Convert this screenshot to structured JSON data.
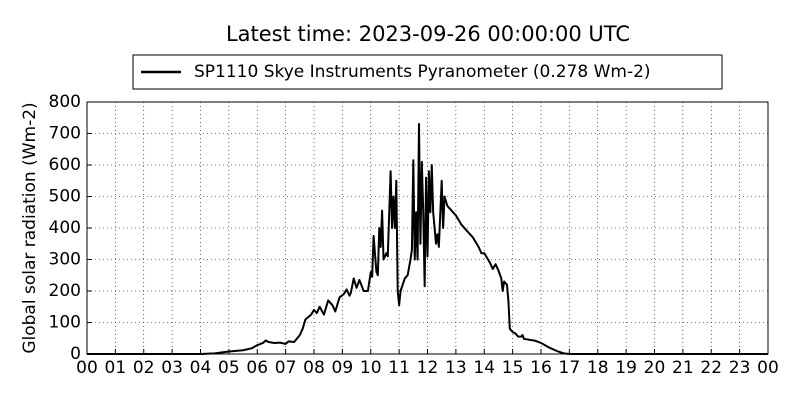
{
  "chart_data": {
    "type": "line",
    "title": "Latest time: 2023-09-26 00:00:00 UTC",
    "y_label": "Global solar radiation (Wm-2)",
    "x": [
      0,
      4.0,
      4.5,
      5.0,
      5.5,
      5.8,
      6.0,
      6.2,
      6.3,
      6.4,
      6.6,
      6.8,
      7.0,
      7.1,
      7.3,
      7.5,
      7.6,
      7.7,
      7.9,
      8.0,
      8.1,
      8.2,
      8.35,
      8.5,
      8.65,
      8.75,
      8.9,
      9.05,
      9.15,
      9.25,
      9.3,
      9.4,
      9.5,
      9.6,
      9.75,
      9.9,
      10.0,
      10.05,
      10.1,
      10.2,
      10.25,
      10.3,
      10.35,
      10.4,
      10.45,
      10.55,
      10.6,
      10.7,
      10.75,
      10.8,
      10.85,
      10.9,
      10.95,
      11.0,
      11.05,
      11.2,
      11.3,
      11.4,
      11.45,
      11.5,
      11.55,
      11.6,
      11.65,
      11.7,
      11.75,
      11.8,
      11.85,
      11.9,
      11.95,
      12.0,
      12.05,
      12.1,
      12.15,
      12.2,
      12.3,
      12.35,
      12.4,
      12.5,
      12.55,
      12.6,
      12.7,
      12.8,
      13.0,
      13.2,
      13.4,
      13.6,
      13.8,
      13.9,
      14.0,
      14.1,
      14.2,
      14.3,
      14.4,
      14.5,
      14.6,
      14.65,
      14.7,
      14.8,
      14.85,
      14.9,
      15.0,
      15.1,
      15.2,
      15.3,
      15.35,
      15.4,
      15.6,
      15.8,
      16.0,
      16.3,
      16.6,
      16.8,
      17.0,
      24
    ],
    "series": [
      {
        "name": "SP1110 Skye Instruments Pyranometer (0.278 Wm-2)",
        "color": "#000000",
        "values": [
          0,
          0,
          2,
          8,
          12,
          18,
          28,
          35,
          43,
          38,
          35,
          36,
          32,
          40,
          38,
          60,
          80,
          110,
          125,
          140,
          130,
          150,
          125,
          170,
          155,
          135,
          180,
          190,
          205,
          185,
          195,
          240,
          210,
          235,
          200,
          200,
          260,
          245,
          375,
          260,
          250,
          400,
          340,
          455,
          300,
          320,
          310,
          580,
          400,
          500,
          400,
          550,
          200,
          155,
          200,
          240,
          250,
          300,
          330,
          615,
          300,
          450,
          300,
          730,
          350,
          610,
          450,
          215,
          560,
          310,
          580,
          450,
          600,
          450,
          350,
          380,
          340,
          550,
          400,
          500,
          470,
          460,
          440,
          410,
          390,
          370,
          340,
          320,
          320,
          305,
          290,
          270,
          285,
          265,
          240,
          200,
          230,
          220,
          170,
          80,
          70,
          65,
          55,
          55,
          60,
          48,
          45,
          42,
          35,
          20,
          8,
          2,
          0,
          0
        ]
      }
    ],
    "xlim": [
      0,
      24
    ],
    "xticks": [
      {
        "value": 0,
        "label": "00"
      },
      {
        "value": 1,
        "label": "01"
      },
      {
        "value": 2,
        "label": "02"
      },
      {
        "value": 3,
        "label": "03"
      },
      {
        "value": 4,
        "label": "04"
      },
      {
        "value": 5,
        "label": "05"
      },
      {
        "value": 6,
        "label": "06"
      },
      {
        "value": 7,
        "label": "07"
      },
      {
        "value": 8,
        "label": "08"
      },
      {
        "value": 9,
        "label": "09"
      },
      10,
      11,
      12,
      13,
      14,
      15,
      16,
      17,
      18,
      19,
      20,
      21,
      22,
      23,
      {
        "value": 24,
        "label": "00"
      }
    ],
    "ylim": [
      0,
      800
    ],
    "yticks": [
      0,
      100,
      200,
      300,
      400,
      500,
      600,
      700,
      800
    ],
    "grid": true
  }
}
